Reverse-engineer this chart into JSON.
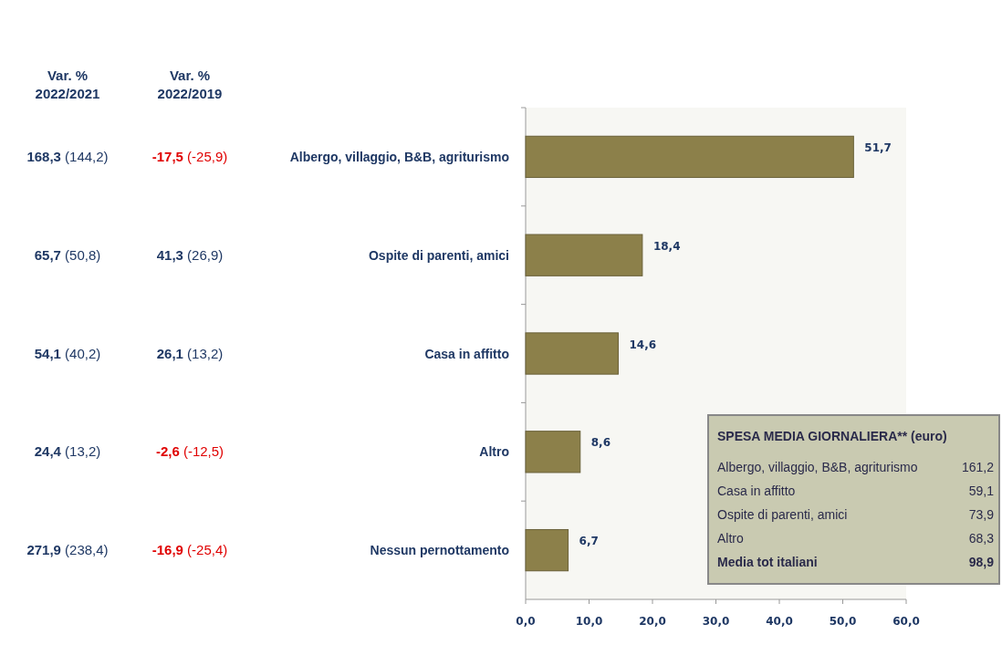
{
  "chart_data": {
    "type": "bar",
    "orientation": "horizontal",
    "categories": [
      "Albergo, villaggio, B&B, agriturismo",
      "Ospite di parenti, amici",
      "Casa in affitto",
      "Altro",
      "Nessun pernottamento"
    ],
    "values": [
      51.7,
      18.4,
      14.6,
      8.6,
      6.7
    ],
    "color": "#8c804a",
    "xlim": [
      0,
      60
    ],
    "xticks": [
      {
        "value": 0,
        "label": "0,0"
      },
      {
        "value": 10,
        "label": "10,0"
      },
      {
        "value": 20,
        "label": "20,0"
      },
      {
        "value": 30,
        "label": "30,0"
      },
      {
        "value": 40,
        "label": "40,0"
      },
      {
        "value": 50,
        "label": "50,0"
      },
      {
        "value": 60,
        "label": "60,0"
      }
    ],
    "value_labels": [
      "51,7",
      "18,4",
      "14,6",
      "8,6",
      "6,7"
    ],
    "grid": false,
    "annotations": [
      "Var. %\n2022/2021",
      "Var. %\n2022/2019",
      "168,3 (144,2)",
      "-17,5 (-25,9)",
      "65,7 (50,8)",
      "41,3 (26,9)",
      "54,1 (40,2)",
      "26,1 (13,2)",
      "24,4 (13,2)",
      "-2,6 (-12,5)",
      "271,9 (238,4)",
      "-16,9 (-25,4)",
      "SPESA MEDIA GIORNALIERA** (euro)",
      "Albergo, villaggio, B&B, agriturismo",
      "161,2",
      "Casa in affitto",
      "59,1",
      "Ospite di parenti, amici",
      "73,9",
      "Altro",
      "68,3",
      "Media tot italiani",
      "98,9"
    ]
  }
}
